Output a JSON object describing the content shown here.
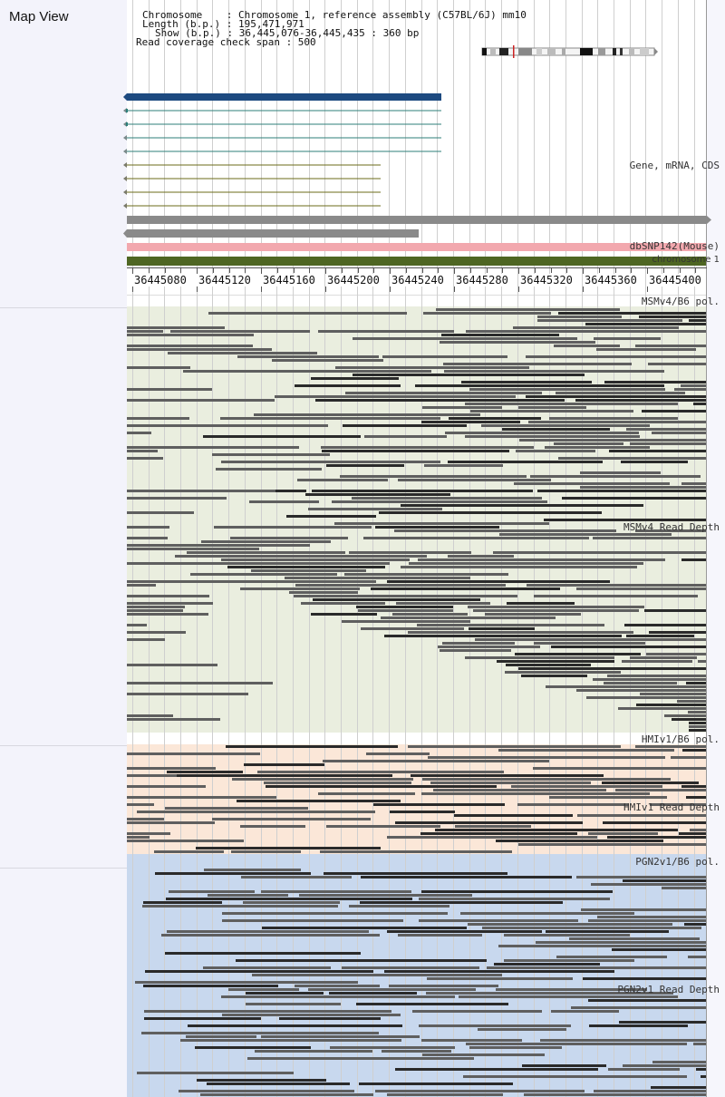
{
  "title": "Map View",
  "info": {
    "chromosome_line": "Chromosome    : Chromosome 1, reference assembly (C57BL/6J) mm10",
    "length_line": "Length (b.p.) : 195,471,971",
    "show_line": "Show (b.p.) : 36,445,076-36,445,435 : 360 bp",
    "coverage_line": "Read coverage check span : 500"
  },
  "tracks": {
    "gene_label": "Gene, mRNA, CDS",
    "snp_label": "dbSNP142(Mouse)",
    "chrom_label": "chromosome 1"
  },
  "axis": {
    "ticks": [
      "36445080",
      "36445120",
      "36445160",
      "36445200",
      "36445240",
      "36445280",
      "36445320",
      "36445360",
      "36445400"
    ]
  },
  "panels": [
    {
      "pol_label": "MSMv4/B6 pol.",
      "depth_label": "MSMv4 Read Depth"
    },
    {
      "pol_label": "HMIv1/B6 pol.",
      "depth_label": "HMIv1 Read Depth"
    },
    {
      "pol_label": "PGN2v1/B6 pol.",
      "depth_label": "PGN2v1 Read Depth"
    }
  ],
  "colors": {
    "gene_main": "#1d4a80",
    "transcript_teal": "#2d7f7a",
    "transcript_olive": "#6b6b1a",
    "gray_feature": "#8a8a8a",
    "snp_bar": "#f2a8ae",
    "chrom_bar": "#4e6622",
    "msm_bg": "#eaeedf",
    "hmi_bg": "#fbe7d8",
    "pgn_bg": "#c8d8ee",
    "read_dark": "#2a2a2a",
    "read_mid": "#5f5f5f",
    "left_panel_bg": "#f3f3fb",
    "polymorphism_mark": "#cc2222"
  },
  "icons": {
    "ideogram": "chromosome-ideogram-icon"
  }
}
